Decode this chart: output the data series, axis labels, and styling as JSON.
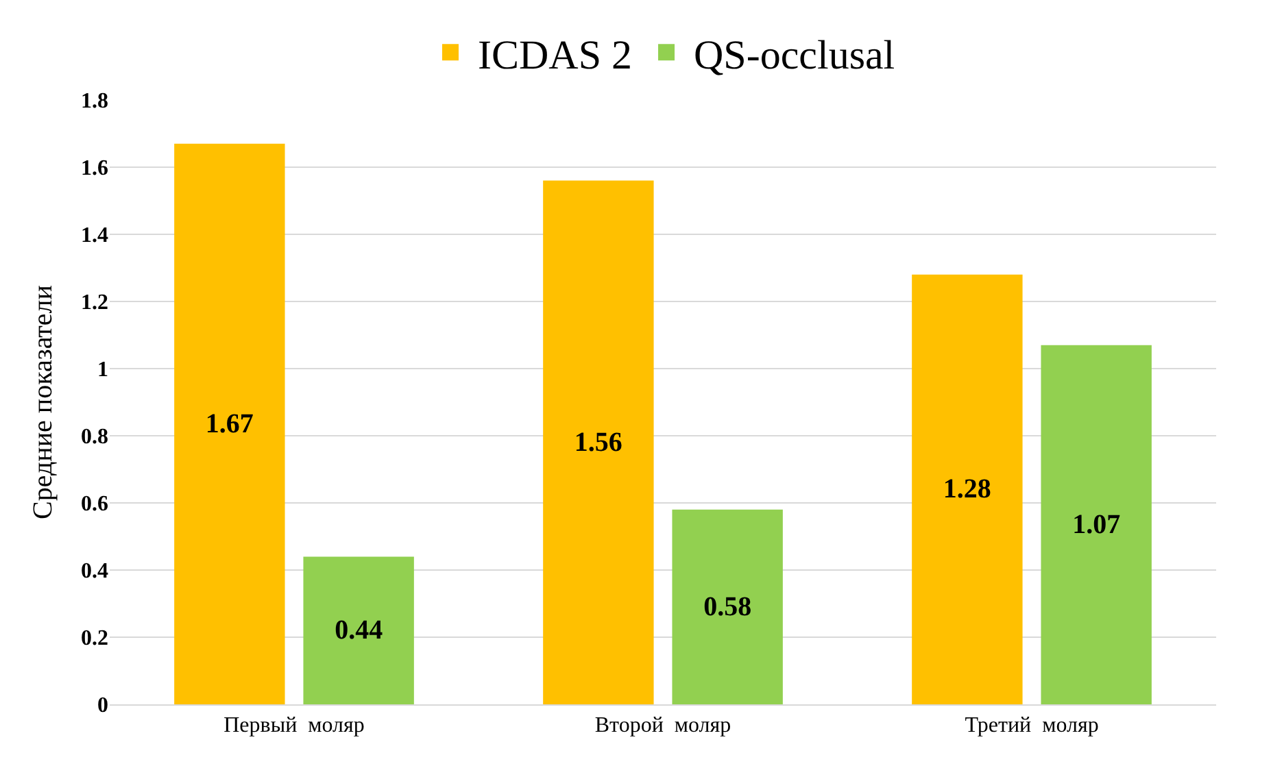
{
  "chart_data": {
    "type": "bar",
    "ylabel": "Средние показатели",
    "categories": [
      "Первый  моляр",
      "Второй  моляр",
      "Третий  моляр"
    ],
    "series": [
      {
        "name": "ICDAS 2",
        "color": "#ffc000",
        "values": [
          1.67,
          1.56,
          1.28
        ]
      },
      {
        "name": "QS-occlusal",
        "color": "#92d050",
        "values": [
          0.44,
          0.58,
          1.07
        ]
      }
    ],
    "ylim": [
      0,
      1.8
    ],
    "yticks": [
      0,
      0.2,
      0.4,
      0.6,
      0.8,
      1,
      1.2,
      1.4,
      1.6,
      1.8
    ],
    "grid": "y",
    "legend": "top",
    "data_labels": true
  }
}
